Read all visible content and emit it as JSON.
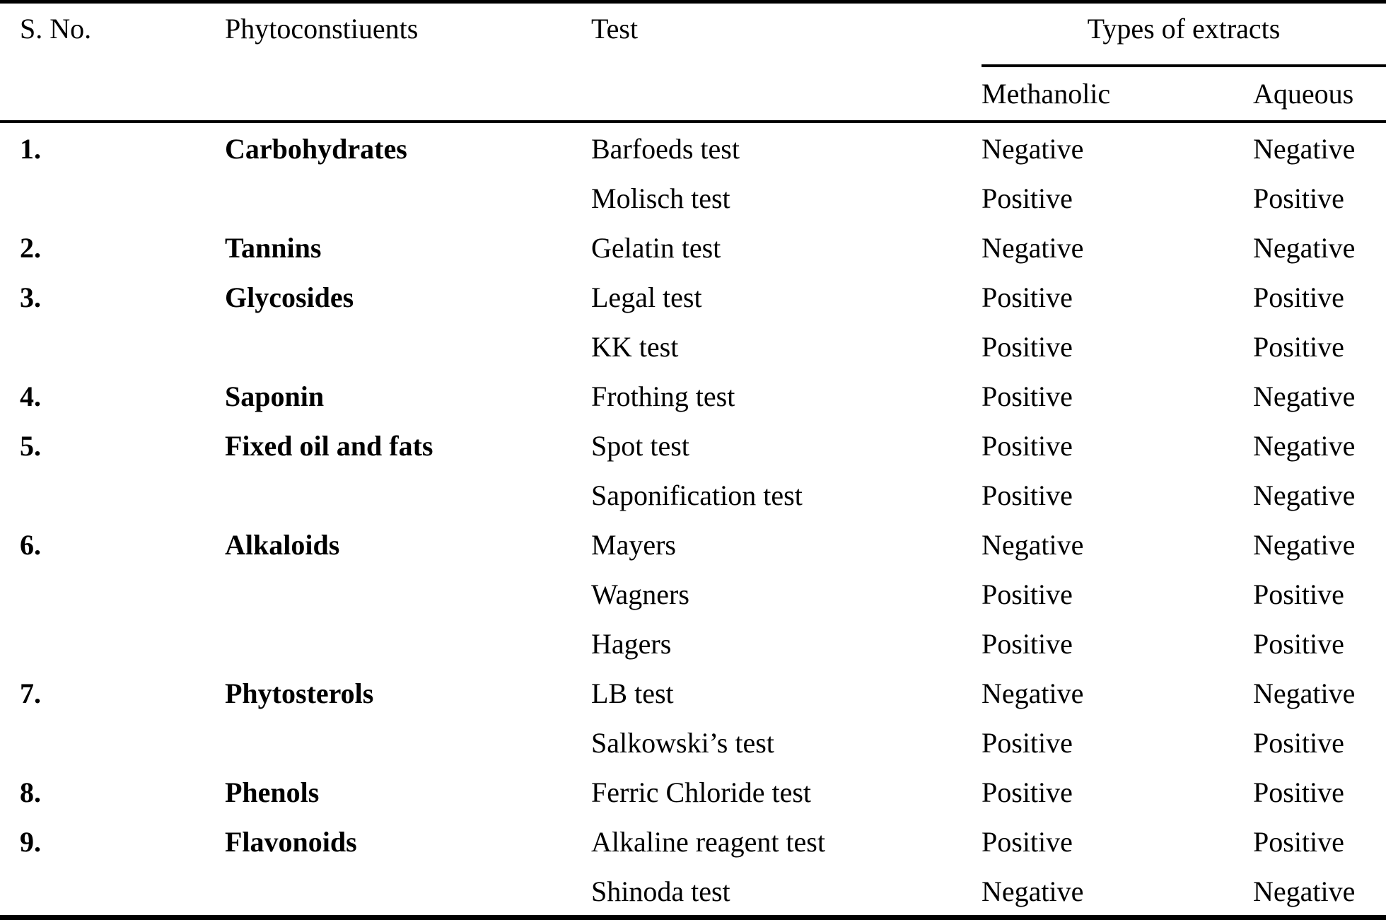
{
  "table": {
    "headers": {
      "s_no": "S. No.",
      "phytoconstituents": "Phytoconstiuents",
      "test": "Test",
      "types_of_extracts": "Types of extracts",
      "methanolic": "Methanolic",
      "aqueous": "Aqueous"
    },
    "rows": [
      {
        "s_no": "1.",
        "constituent": "Carbohydrates",
        "test": "Barfoeds test",
        "methanolic": "Negative",
        "aqueous": "Negative"
      },
      {
        "s_no": "",
        "constituent": "",
        "test": "Molisch test",
        "methanolic": "Positive",
        "aqueous": "Positive"
      },
      {
        "s_no": "2.",
        "constituent": "Tannins",
        "test": "Gelatin test",
        "methanolic": "Negative",
        "aqueous": "Negative"
      },
      {
        "s_no": "3.",
        "constituent": "Glycosides",
        "test": "Legal test",
        "methanolic": "Positive",
        "aqueous": "Positive"
      },
      {
        "s_no": "",
        "constituent": "",
        "test": "KK test",
        "methanolic": "Positive",
        "aqueous": "Positive"
      },
      {
        "s_no": "4.",
        "constituent": "Saponin",
        "test": "Frothing test",
        "methanolic": "Positive",
        "aqueous": "Negative"
      },
      {
        "s_no": "5.",
        "constituent": "Fixed oil and fats",
        "test": "Spot test",
        "methanolic": "Positive",
        "aqueous": "Negative"
      },
      {
        "s_no": "",
        "constituent": "",
        "test": "Saponification test",
        "methanolic": "Positive",
        "aqueous": "Negative"
      },
      {
        "s_no": "6.",
        "constituent": "Alkaloids",
        "test": "Mayers",
        "methanolic": "Negative",
        "aqueous": "Negative"
      },
      {
        "s_no": "",
        "constituent": "",
        "test": "Wagners",
        "methanolic": "Positive",
        "aqueous": "Positive"
      },
      {
        "s_no": "",
        "constituent": "",
        "test": "Hagers",
        "methanolic": "Positive",
        "aqueous": "Positive"
      },
      {
        "s_no": "7.",
        "constituent": "Phytosterols",
        "test": "LB test",
        "methanolic": "Negative",
        "aqueous": "Negative"
      },
      {
        "s_no": "",
        "constituent": "",
        "test": "Salkowski’s test",
        "methanolic": "Positive",
        "aqueous": "Positive"
      },
      {
        "s_no": "8.",
        "constituent": "Phenols",
        "test": "Ferric Chloride test",
        "methanolic": "Positive",
        "aqueous": "Positive"
      },
      {
        "s_no": "9.",
        "constituent": "Flavonoids",
        "test": "Alkaline reagent test",
        "methanolic": "Positive",
        "aqueous": "Positive"
      },
      {
        "s_no": "",
        "constituent": "",
        "test": "Shinoda test",
        "methanolic": "Negative",
        "aqueous": "Negative"
      }
    ]
  }
}
